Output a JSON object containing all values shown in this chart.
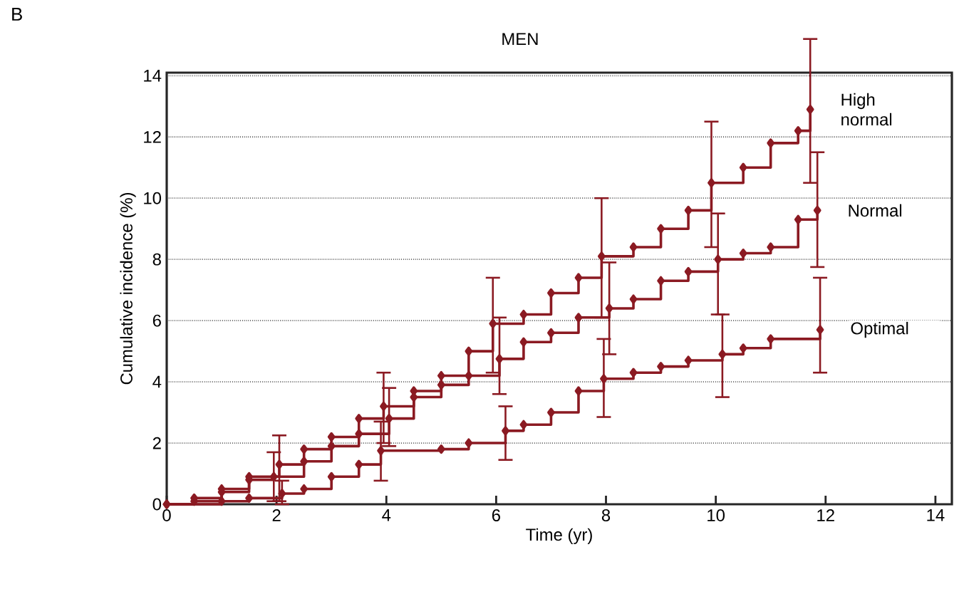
{
  "chart_data": {
    "type": "step",
    "title": "MEN",
    "xlabel": "Time (yr)",
    "ylabel": "Cumulative incidence (%)",
    "annotations": [
      "B"
    ],
    "xlim": [
      0,
      14.3
    ],
    "ylim": [
      0,
      14.1
    ],
    "xticks": [
      0,
      2,
      4,
      6,
      8,
      10,
      12,
      14
    ],
    "yticks": [
      0,
      2,
      4,
      6,
      8,
      10,
      12,
      14
    ],
    "grid": "y",
    "marker": "diamond",
    "line_style": "solid",
    "series": [
      {
        "name": "High normal",
        "color": "#8b1a22",
        "x": [
          0,
          0.5,
          1,
          1.5,
          2.05,
          2.5,
          3,
          3.5,
          3.95,
          4.5,
          5,
          5.5,
          5.94,
          6.5,
          7,
          7.5,
          7.92,
          8.5,
          9,
          9.5,
          9.92,
          10.5,
          11,
          11.5,
          11.72
        ],
        "values": [
          0,
          0.2,
          0.5,
          0.9,
          1.3,
          1.8,
          2.2,
          2.8,
          3.2,
          3.7,
          4.2,
          5.0,
          5.9,
          6.2,
          6.9,
          7.4,
          8.1,
          8.4,
          9.0,
          9.6,
          10.5,
          11.0,
          11.8,
          12.2,
          12.9
        ],
        "errors": [
          null,
          null,
          null,
          null,
          [
            0.1,
            2.25
          ],
          null,
          null,
          null,
          [
            2.0,
            4.3
          ],
          null,
          null,
          null,
          [
            4.3,
            7.4
          ],
          null,
          null,
          null,
          [
            6.1,
            10.0
          ],
          null,
          null,
          null,
          [
            8.4,
            12.5
          ],
          null,
          null,
          null,
          [
            10.5,
            15.2
          ]
        ]
      },
      {
        "name": "Normal",
        "color": "#8b1a22",
        "x": [
          0,
          0.5,
          1,
          1.5,
          1.95,
          2.5,
          3,
          3.5,
          4.05,
          4.5,
          5,
          5.5,
          6.06,
          6.5,
          7,
          7.5,
          8.06,
          8.5,
          9,
          9.5,
          10.04,
          10.5,
          11,
          11.5,
          11.85
        ],
        "values": [
          0,
          0.1,
          0.4,
          0.8,
          0.9,
          1.4,
          1.9,
          2.3,
          2.8,
          3.5,
          3.9,
          4.2,
          4.75,
          5.3,
          5.6,
          6.1,
          6.4,
          6.7,
          7.3,
          7.6,
          8.0,
          8.2,
          8.4,
          9.3,
          9.6
        ],
        "errors": [
          null,
          null,
          null,
          null,
          [
            0.1,
            1.7
          ],
          null,
          null,
          null,
          [
            1.9,
            3.8
          ],
          null,
          null,
          null,
          [
            3.6,
            6.1
          ],
          null,
          null,
          null,
          [
            4.9,
            7.9
          ],
          null,
          null,
          null,
          [
            6.2,
            9.5
          ],
          null,
          null,
          null,
          [
            7.75,
            11.5
          ]
        ]
      },
      {
        "name": "Optimal",
        "color": "#8b1a22",
        "x": [
          0,
          1,
          1.5,
          2.1,
          2.5,
          3,
          3.5,
          3.9,
          5,
          5.5,
          6.17,
          6.5,
          7,
          7.5,
          7.96,
          8.5,
          9,
          9.5,
          10.12,
          10.5,
          11,
          11.9
        ],
        "values": [
          0,
          0.1,
          0.2,
          0.35,
          0.5,
          0.9,
          1.3,
          1.75,
          1.8,
          2.0,
          2.4,
          2.6,
          3.0,
          3.7,
          4.1,
          4.3,
          4.5,
          4.7,
          4.9,
          5.1,
          5.4,
          5.7
        ],
        "errors": [
          null,
          null,
          null,
          [
            0.0,
            0.77
          ],
          null,
          null,
          null,
          [
            0.77,
            2.7
          ],
          null,
          null,
          [
            1.45,
            3.2
          ],
          null,
          null,
          null,
          [
            2.85,
            5.4
          ],
          null,
          null,
          null,
          [
            3.5,
            6.2
          ],
          null,
          null,
          [
            4.3,
            7.4
          ]
        ]
      }
    ]
  }
}
